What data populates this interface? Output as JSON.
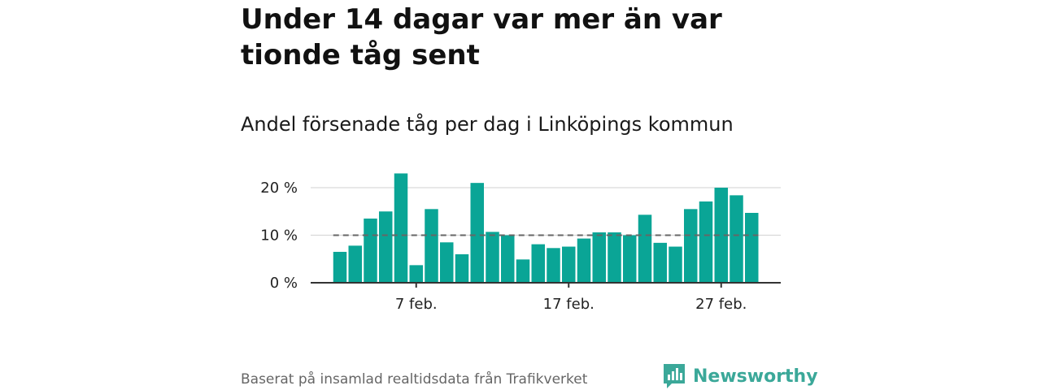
{
  "title": "Under 14 dagar var mer än var tionde tåg sent",
  "subtitle": "Andel försenade tåg per dag i Linköpings kommun",
  "source": "Baserat på insamlad realtidsdata från Trafikverket",
  "brand": {
    "name": "Newsworthy",
    "color": "#3ba899",
    "icon": "newsworthy-logo-icon"
  },
  "colors": {
    "bar": "#0aa596",
    "reference_line": "#666666",
    "grid": "#d9d9d9",
    "axis": "#333333"
  },
  "chart_data": {
    "type": "bar",
    "x_unit": "day",
    "x_start": "2 feb.",
    "x_ticks": [
      "7 feb.",
      "17 feb.",
      "27 feb."
    ],
    "x_tick_index": [
      5,
      15,
      25
    ],
    "y_ticks": [
      "0 %",
      "10 %",
      "20 %"
    ],
    "y_tick_values": [
      0,
      10,
      20
    ],
    "ylim": [
      0,
      23
    ],
    "reference_line": 10,
    "grid": true,
    "values": [
      6.5,
      7.8,
      13.5,
      15.0,
      23.0,
      3.7,
      15.5,
      8.5,
      6.0,
      21.0,
      10.7,
      10.0,
      4.9,
      8.1,
      7.3,
      7.6,
      9.3,
      10.6,
      10.6,
      10.0,
      14.3,
      8.4,
      7.6,
      15.5,
      17.1,
      20.0,
      18.4,
      14.7
    ]
  }
}
